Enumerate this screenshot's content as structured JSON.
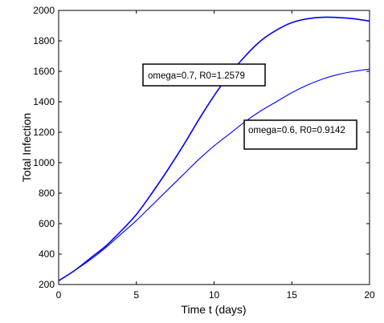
{
  "chart_data": {
    "type": "line",
    "title": "",
    "xlabel": "Time t (days)",
    "ylabel": "Total Infection",
    "xlim": [
      0,
      20
    ],
    "ylim": [
      200,
      2000
    ],
    "xticks": [
      "0",
      "5",
      "10",
      "15",
      "20"
    ],
    "yticks": [
      "200",
      "400",
      "600",
      "800",
      "1000",
      "1200",
      "1400",
      "1600",
      "1800",
      "2000"
    ],
    "grid": false,
    "line_color": "#0000ff",
    "series": [
      {
        "x": [
          0,
          1,
          2,
          3,
          4,
          5,
          6,
          7,
          8,
          9,
          10,
          11,
          12,
          13,
          14,
          15,
          16,
          17,
          18,
          19,
          20
        ],
        "y": [
          225,
          290,
          370,
          450,
          550,
          660,
          800,
          950,
          1110,
          1280,
          1440,
          1580,
          1700,
          1800,
          1870,
          1920,
          1945,
          1955,
          1953,
          1945,
          1930
        ]
      },
      {
        "x": [
          0,
          1,
          2,
          3,
          4,
          5,
          6,
          7,
          8,
          9,
          10,
          11,
          12,
          13,
          14,
          15,
          16,
          17,
          18,
          19,
          20
        ],
        "y": [
          225,
          290,
          360,
          440,
          530,
          620,
          720,
          820,
          920,
          1020,
          1110,
          1190,
          1270,
          1340,
          1400,
          1460,
          1510,
          1550,
          1580,
          1600,
          1615
        ]
      }
    ],
    "annotations": [
      {
        "text": "omega=0.7, R0=1.2579"
      },
      {
        "text": "omega=0.6, R0=0.9142"
      }
    ]
  }
}
